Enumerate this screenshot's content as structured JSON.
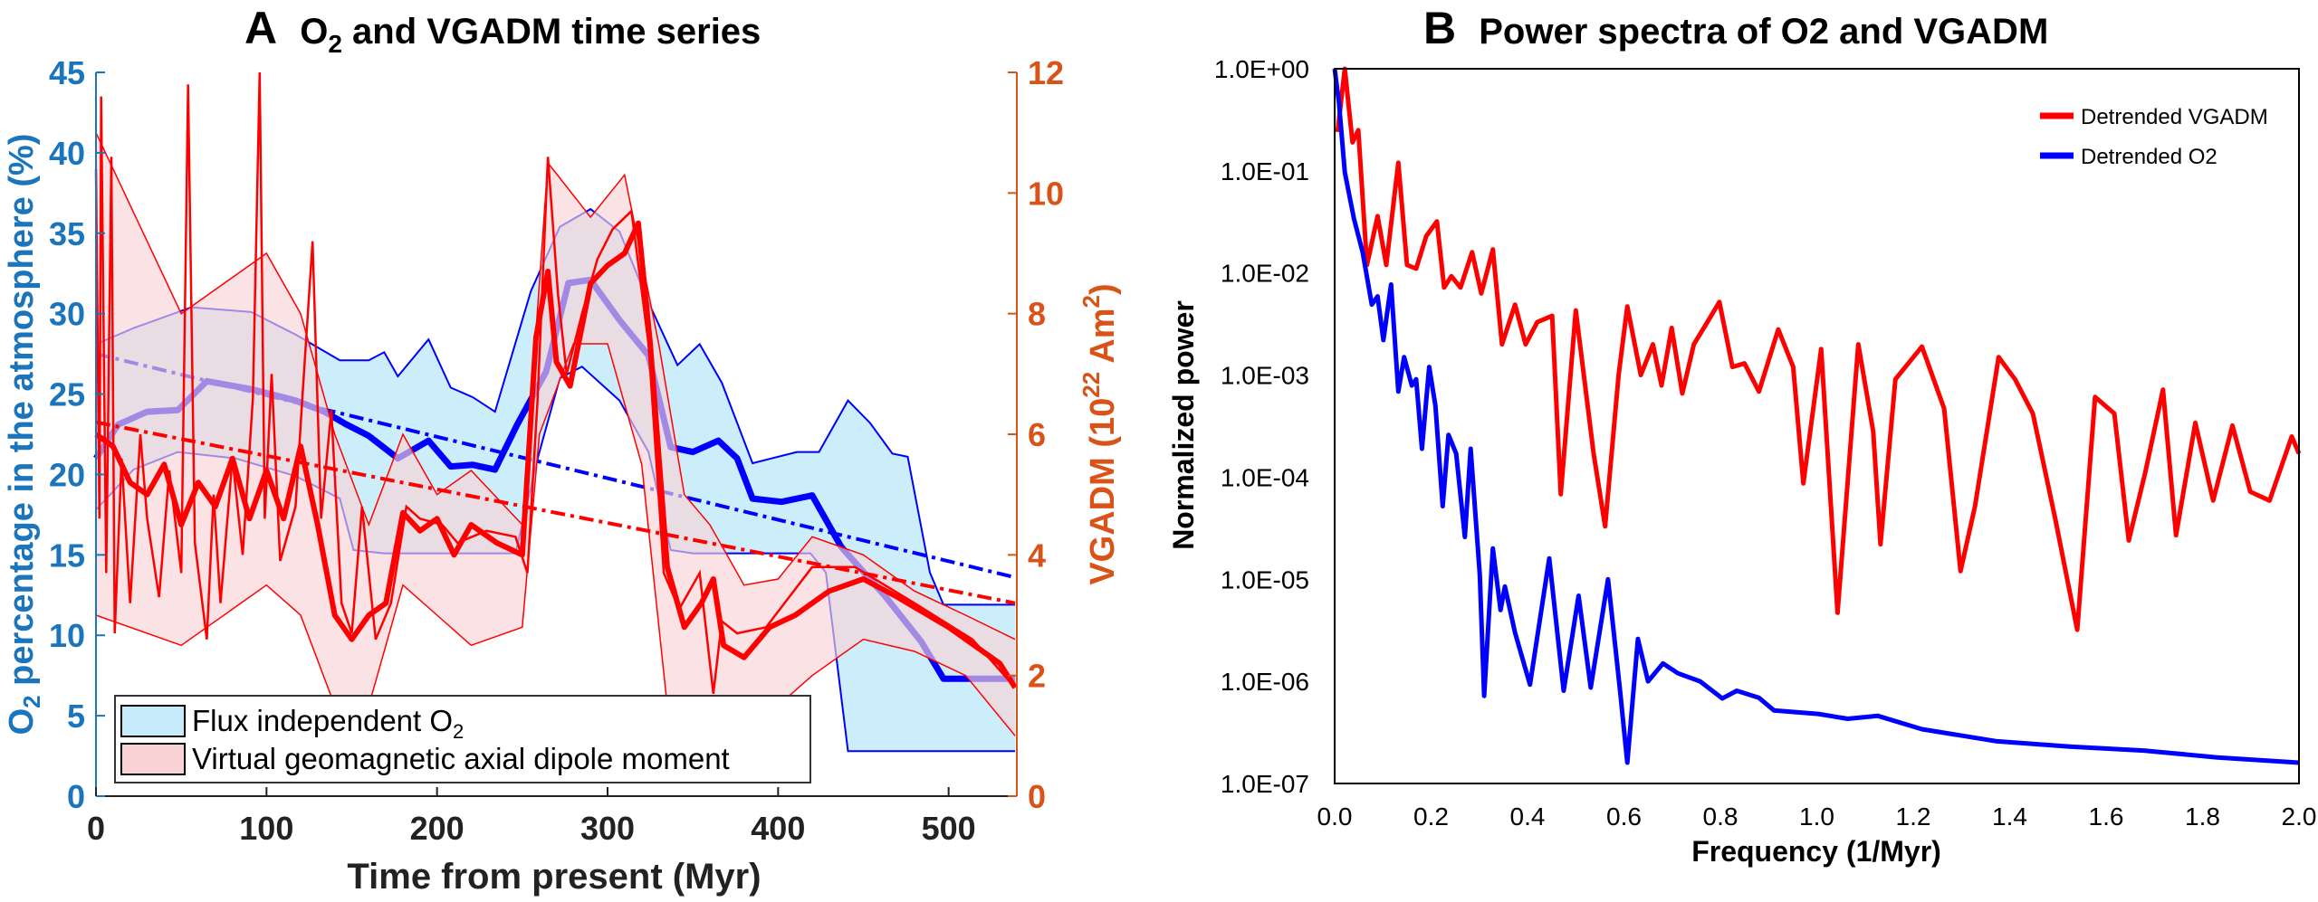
{
  "panel_a": {
    "letter": "A",
    "title_pre": "O",
    "title_sub": "2",
    "title_post": " and VGADM time series",
    "left_label_pre": "O",
    "left_label_sub": "2",
    "left_label_post": " percentage in the atmosphere (%)",
    "right_label_parts": [
      "VGADM (10",
      "22",
      " Am",
      "2",
      ")"
    ],
    "xlabel": "Time from present (Myr)",
    "legend": {
      "o2_pre": "Flux independent O",
      "o2_sub": "2",
      "vgadm": "Virtual geomagnetic axial dipole moment"
    }
  },
  "panel_b": {
    "letter": "B",
    "title": "Power spectra of O2 and VGADM",
    "ylabel": "Normalized power",
    "xlabel": "Frequency (1/Myr)",
    "legend": [
      "Detrended VGADM",
      "Detrended O2"
    ]
  },
  "colors": {
    "o2_axis": "#1b75bc",
    "vgadm_axis": "#d95319",
    "o2_series": "#0000ff",
    "vgadm_series": "#ff0000",
    "o2_band": "#c6ecfb",
    "vgadm_band": "#f9d3d6"
  },
  "chart_data": [
    {
      "type": "line",
      "title": "O₂ and VGADM time series",
      "xlabel": "Time from present (Myr)",
      "ylabel_left": "O₂ percentage in the atmosphere (%)",
      "ylabel_right": "VGADM (10²² Am²)",
      "xlim": [
        0,
        540
      ],
      "ylim_left": [
        0,
        45
      ],
      "ylim_right": [
        0,
        12
      ],
      "xticks": [
        "0",
        "100",
        "200",
        "300",
        "400",
        "500"
      ],
      "yticks_left": [
        "0",
        "5",
        "10",
        "15",
        "20",
        "25",
        "30",
        "35",
        "40",
        "45"
      ],
      "yticks_right": [
        "0",
        "2",
        "4",
        "6",
        "8",
        "10",
        "12"
      ],
      "legend_position": "bottom-left",
      "o2_mean": {
        "x": [
          0,
          13,
          30,
          48,
          65,
          91,
          117,
          134,
          147,
          160,
          177,
          195,
          208,
          221,
          234,
          247,
          264,
          277,
          290,
          307,
          324,
          337,
          350,
          365,
          376,
          385,
          402,
          420,
          437,
          463,
          484,
          497,
          539
        ],
        "y": [
          21.0,
          23.1,
          23.9,
          24.0,
          25.8,
          25.3,
          24.6,
          23.9,
          23.1,
          22.4,
          21.0,
          22.1,
          20.5,
          20.6,
          20.3,
          23.1,
          26.4,
          31.9,
          32.1,
          29.6,
          27.4,
          21.7,
          21.4,
          22.1,
          21.0,
          18.5,
          18.3,
          18.7,
          15.5,
          12.4,
          9.6,
          7.3,
          7.3
        ]
      },
      "o2_upper": {
        "x": [
          0,
          22,
          56,
          91,
          117,
          143,
          160,
          169,
          177,
          195,
          208,
          221,
          234,
          255,
          272,
          290,
          307,
          324,
          341,
          354,
          367,
          385,
          411,
          424,
          441,
          454,
          467,
          476,
          489,
          497,
          539
        ],
        "y": [
          28.1,
          29.1,
          30.4,
          30.1,
          28.7,
          27.1,
          27.1,
          27.6,
          26.1,
          28.4,
          25.4,
          24.8,
          23.9,
          31.4,
          35.4,
          36.5,
          35.1,
          30.7,
          26.8,
          28.1,
          25.7,
          20.7,
          21.4,
          21.4,
          24.6,
          23.2,
          21.3,
          21.1,
          13.9,
          11.9,
          11.9
        ]
      },
      "o2_lower": {
        "x": [
          0,
          22,
          48,
          82,
          117,
          143,
          151,
          169,
          203,
          246,
          259,
          272,
          285,
          307,
          324,
          337,
          350,
          419,
          428,
          441,
          539
        ],
        "y": [
          17.8,
          20.3,
          21.4,
          21.0,
          19.9,
          18.5,
          15.3,
          15.1,
          15.1,
          15.1,
          21.0,
          26.0,
          26.7,
          24.6,
          21.4,
          15.3,
          15.1,
          15.1,
          13.9,
          2.8,
          2.8
        ]
      },
      "o2_trend": {
        "x": [
          0,
          539
        ],
        "y": [
          27.5,
          13.6
        ]
      },
      "vgadm_raw": {
        "x": [
          0,
          2,
          3,
          6,
          9,
          11,
          15,
          20,
          26,
          30,
          37,
          43,
          50,
          54,
          58,
          65,
          69,
          73,
          80,
          86,
          92,
          96,
          99,
          103,
          108,
          117,
          121,
          127,
          132,
          138,
          144,
          150,
          156,
          164,
          173,
          182,
          190,
          203,
          212,
          229,
          246,
          253,
          259,
          265,
          271,
          276,
          285,
          294,
          303,
          314,
          324,
          333,
          342,
          354,
          362,
          367,
          376,
          393,
          420,
          445,
          480,
          514,
          539
        ],
        "y": [
          10.4,
          4.6,
          11.6,
          3.7,
          10.6,
          2.7,
          5.6,
          3.2,
          6.0,
          4.6,
          3.3,
          5.4,
          3.7,
          11.8,
          4.2,
          2.6,
          5.0,
          3.2,
          5.6,
          4.0,
          6.6,
          12.0,
          4.6,
          7.0,
          3.9,
          4.8,
          6.6,
          9.2,
          4.6,
          6.4,
          3.2,
          2.7,
          4.8,
          2.6,
          3.2,
          4.8,
          4.6,
          4.5,
          4.2,
          4.4,
          4.3,
          3.7,
          6.6,
          10.6,
          8.3,
          7.0,
          8.0,
          8.9,
          9.4,
          9.7,
          7.5,
          3.7,
          3.1,
          3.7,
          1.7,
          2.9,
          2.7,
          2.8,
          3.8,
          3.8,
          3.2,
          2.6,
          1.8
        ]
      },
      "vgadm_mean": {
        "x": [
          0,
          10,
          20,
          30,
          40,
          50,
          60,
          70,
          80,
          90,
          100,
          110,
          120,
          130,
          140,
          150,
          160,
          170,
          180,
          190,
          200,
          210,
          220,
          235,
          250,
          258,
          265,
          270,
          278,
          290,
          300,
          310,
          318,
          325,
          335,
          345,
          355,
          362,
          368,
          380,
          395,
          410,
          430,
          450,
          470,
          500,
          530,
          539
        ],
        "y": [
          6.0,
          5.8,
          5.2,
          5.0,
          5.5,
          4.5,
          5.2,
          4.8,
          5.6,
          4.6,
          5.4,
          4.6,
          5.8,
          4.5,
          3.0,
          2.6,
          3.0,
          3.2,
          4.7,
          4.4,
          4.6,
          4.0,
          4.5,
          4.2,
          4.0,
          7.6,
          8.7,
          7.2,
          6.8,
          8.5,
          8.8,
          9.0,
          9.5,
          7.5,
          3.8,
          2.8,
          3.2,
          3.6,
          2.5,
          2.3,
          2.8,
          3.0,
          3.4,
          3.6,
          3.3,
          2.8,
          2.2,
          1.8
        ]
      },
      "vgadm_upper": {
        "x": [
          0,
          50,
          100,
          120,
          140,
          160,
          180,
          200,
          220,
          250,
          265,
          290,
          310,
          330,
          345,
          360,
          380,
          400,
          420,
          450,
          480,
          510,
          539
        ],
        "y": [
          11,
          8,
          9,
          8,
          6,
          4.5,
          6,
          5,
          5.4,
          4.5,
          10.5,
          9.6,
          10.3,
          7.5,
          5,
          4.5,
          3.5,
          3.6,
          4.3,
          4.0,
          3.4,
          3.0,
          2.6
        ]
      },
      "vgadm_lower": {
        "x": [
          0,
          50,
          100,
          120,
          140,
          160,
          180,
          200,
          220,
          250,
          260,
          280,
          300,
          320,
          335,
          350,
          370,
          400,
          420,
          450,
          480,
          510,
          539
        ],
        "y": [
          3,
          2.5,
          3.5,
          3,
          1.5,
          1.5,
          3.5,
          3.0,
          2.5,
          2.8,
          6,
          7.5,
          7.5,
          5.5,
          1.5,
          1.6,
          1.2,
          1.5,
          2.0,
          2.6,
          2.4,
          2.0,
          1.0
        ]
      },
      "vgadm_trend": {
        "x": [
          0,
          539
        ],
        "y": [
          6.2,
          3.2
        ]
      }
    },
    {
      "type": "line",
      "title": "Power spectra of O2 and VGADM",
      "xlabel": "Frequency (1/Myr)",
      "ylabel": "Normalized power",
      "xlim": [
        0,
        2.0
      ],
      "ylim": [
        1e-07,
        1
      ],
      "yscale": "log",
      "xticks": [
        "0.0",
        "0.2",
        "0.4",
        "0.6",
        "0.8",
        "1.0",
        "1.2",
        "1.4",
        "1.6",
        "1.8",
        "2.0"
      ],
      "yticks": [
        "1.0E+00",
        "1.0E-01",
        "1.0E-02",
        "1.0E-03",
        "1.0E-04",
        "1.0E-05",
        "1.0E-06",
        "1.0E-07"
      ],
      "legend_position": "top-right",
      "series": [
        {
          "name": "Detrended VGADM",
          "x": [
            0.006,
            0.021,
            0.037,
            0.049,
            0.067,
            0.089,
            0.107,
            0.132,
            0.15,
            0.169,
            0.19,
            0.212,
            0.227,
            0.242,
            0.261,
            0.285,
            0.304,
            0.328,
            0.347,
            0.374,
            0.396,
            0.42,
            0.451,
            0.469,
            0.5,
            0.537,
            0.561,
            0.589,
            0.607,
            0.635,
            0.66,
            0.678,
            0.699,
            0.721,
            0.745,
            0.773,
            0.798,
            0.825,
            0.85,
            0.88,
            0.92,
            0.951,
            0.972,
            1.009,
            1.043,
            1.086,
            1.117,
            1.132,
            1.163,
            1.218,
            1.264,
            1.298,
            1.328,
            1.377,
            1.411,
            1.448,
            1.494,
            1.54,
            1.577,
            1.617,
            1.647,
            1.681,
            1.718,
            1.745,
            1.785,
            1.822,
            1.862,
            1.899,
            1.939,
            1.985,
            2.0
          ],
          "y": [
            0.24,
            1.0,
            0.19,
            0.25,
            0.012,
            0.036,
            0.012,
            0.12,
            0.012,
            0.011,
            0.023,
            0.032,
            0.0072,
            0.0093,
            0.0072,
            0.016,
            0.0063,
            0.017,
            0.002,
            0.0049,
            0.002,
            0.0033,
            0.0038,
            6.8e-05,
            0.0043,
            0.00017,
            3.3e-05,
            0.001,
            0.0047,
            0.001,
            0.002,
            0.00079,
            0.0029,
            0.00066,
            0.002,
            0.0033,
            0.0052,
            0.0012,
            0.0013,
            0.00069,
            0.0028,
            0.0012,
            8.7e-05,
            0.0018,
            4.7e-06,
            0.002,
            0.00028,
            2.2e-05,
            0.00091,
            0.0019,
            0.00047,
            1.2e-05,
            5.2e-05,
            0.0015,
            0.00091,
            0.00042,
            4e-05,
            3.2e-06,
            0.00061,
            0.00042,
            2.4e-05,
            0.00011,
            0.00072,
            2.7e-05,
            0.00034,
            5.9e-05,
            0.00032,
            7.2e-05,
            5.9e-05,
            0.00025,
            0.00017
          ]
        },
        {
          "name": "Detrended O2",
          "x": [
            0,
            0.009,
            0.021,
            0.04,
            0.058,
            0.077,
            0.089,
            0.101,
            0.117,
            0.132,
            0.144,
            0.16,
            0.169,
            0.181,
            0.196,
            0.209,
            0.224,
            0.236,
            0.252,
            0.27,
            0.282,
            0.301,
            0.31,
            0.328,
            0.344,
            0.353,
            0.374,
            0.405,
            0.445,
            0.475,
            0.506,
            0.531,
            0.567,
            0.592,
            0.607,
            0.629,
            0.65,
            0.681,
            0.712,
            0.758,
            0.804,
            0.834,
            0.88,
            0.911,
            1.003,
            1.064,
            1.126,
            1.218,
            1.371,
            1.525,
            1.678,
            1.831,
            2.0
          ],
          "y": [
            1.0,
            0.46,
            0.097,
            0.034,
            0.016,
            0.0049,
            0.0059,
            0.0022,
            0.0077,
            0.00069,
            0.0015,
            0.00079,
            0.00091,
            0.00019,
            0.0012,
            0.0005,
            5.2e-05,
            0.00026,
            0.00017,
            2.6e-05,
            0.00019,
            1.1e-05,
            7.2e-07,
            2e-05,
            5e-06,
            8.5e-06,
            3e-06,
            9.3e-07,
            1.6e-05,
            8.1e-07,
            6.9e-06,
            8.7e-07,
            1e-05,
            8.1e-07,
            1.6e-07,
            2.6e-06,
            1e-06,
            1.5e-06,
            1.2e-06,
            1e-06,
            6.8e-07,
            8.1e-07,
            6.9e-07,
            5.2e-07,
            4.8e-07,
            4.3e-07,
            4.6e-07,
            3.4e-07,
            2.6e-07,
            2.3e-07,
            2.1e-07,
            1.8e-07,
            1.6e-07
          ]
        }
      ]
    }
  ]
}
